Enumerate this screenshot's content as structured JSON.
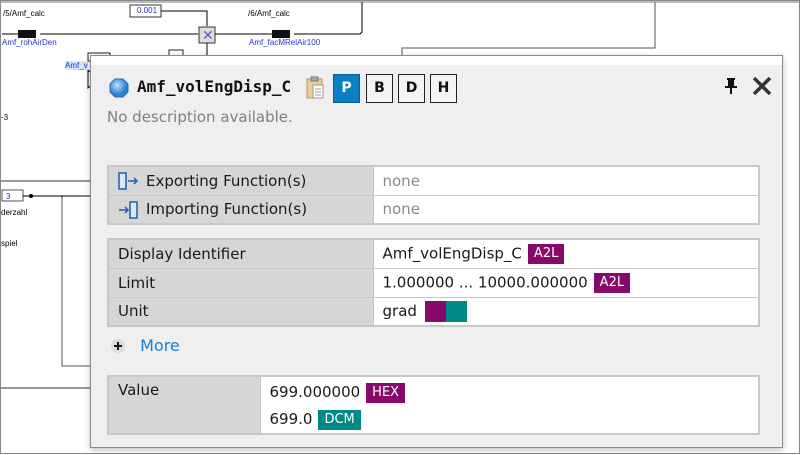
{
  "diagram": {
    "labels": {
      "calc5": "/5/Amf_calc",
      "calc6": "/6/Amf_calc",
      "const_value": "0.001",
      "rohAirDen": "Amf_rohAirDen",
      "facMRelAir100": "Amf_facMRelAir100",
      "amf_vol_partial": "Amf_v",
      "minus3": "-3",
      "const3": "3",
      "derzahl": "derzahl",
      "spiel": "spiel"
    }
  },
  "popup": {
    "title": "Amf_volEngDisp_C",
    "description": "No description available.",
    "view_buttons": [
      {
        "label": "P",
        "active": true
      },
      {
        "label": "B",
        "active": false
      },
      {
        "label": "D",
        "active": false
      },
      {
        "label": "H",
        "active": false
      }
    ],
    "functions": [
      {
        "label": "Exporting Function(s)",
        "value": "none"
      },
      {
        "label": "Importing Function(s)",
        "value": "none"
      }
    ],
    "properties": {
      "display_identifier": {
        "label": "Display Identifier",
        "value": "Amf_volEngDisp_C",
        "badge": "A2L"
      },
      "limit": {
        "label": "Limit",
        "value": "1.000000 ... 10000.000000",
        "badge": "A2L"
      },
      "unit": {
        "label": "Unit",
        "value": "grad"
      }
    },
    "more_label": "More",
    "value": {
      "label": "Value",
      "hex_value": "699.000000",
      "hex_badge": "HEX",
      "dcm_value": "699.0",
      "dcm_badge": "DCM"
    },
    "colors": {
      "badge_purple": "#870a6a",
      "badge_teal": "#008a87",
      "active_button": "#0b7ec4"
    }
  }
}
